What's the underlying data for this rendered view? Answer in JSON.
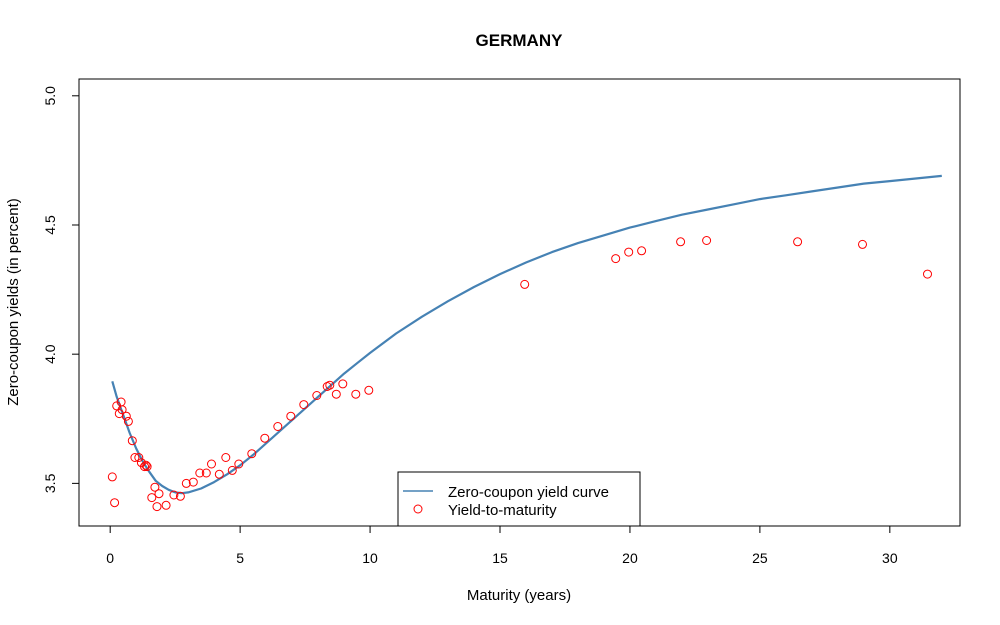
{
  "chart_data": {
    "type": "line",
    "title": "GERMANY",
    "xlabel": "Maturity (years)",
    "ylabel": "Zero-coupon yields (in percent)",
    "xlim": [
      -1.2,
      32.7
    ],
    "ylim": [
      3.335,
      5.065
    ],
    "x_ticks": [
      0,
      5,
      10,
      15,
      20,
      25,
      30
    ],
    "y_ticks": [
      3.5,
      4.0,
      4.5,
      5.0
    ],
    "x_tick_labels": [
      "0",
      "5",
      "10",
      "15",
      "20",
      "25",
      "30"
    ],
    "y_tick_labels": [
      "3.5",
      "4.0",
      "4.5",
      "5.0"
    ],
    "grid": false,
    "legend_position": "bottom-center",
    "series": [
      {
        "name": "Zero-coupon yield curve",
        "kind": "line",
        "color": "#4682B4",
        "x": [
          0.08,
          0.25,
          0.5,
          0.75,
          1.0,
          1.25,
          1.5,
          1.75,
          2.0,
          2.25,
          2.5,
          2.75,
          3.0,
          3.5,
          4.0,
          4.5,
          5.0,
          5.5,
          6.0,
          6.5,
          7.0,
          7.5,
          8.0,
          8.5,
          9.0,
          9.5,
          10.0,
          11.0,
          12.0,
          13.0,
          14.0,
          15.0,
          16.0,
          17.0,
          18.0,
          19.0,
          20.0,
          21.0,
          22.0,
          23.0,
          24.0,
          25.0,
          26.0,
          27.0,
          28.0,
          29.0,
          30.0,
          31.0,
          32.0
        ],
        "y": [
          3.895,
          3.835,
          3.765,
          3.695,
          3.635,
          3.585,
          3.545,
          3.51,
          3.49,
          3.475,
          3.465,
          3.462,
          3.465,
          3.48,
          3.505,
          3.535,
          3.57,
          3.61,
          3.655,
          3.7,
          3.745,
          3.79,
          3.835,
          3.88,
          3.925,
          3.965,
          4.005,
          4.08,
          4.145,
          4.205,
          4.26,
          4.31,
          4.355,
          4.395,
          4.43,
          4.46,
          4.49,
          4.515,
          4.54,
          4.56,
          4.58,
          4.6,
          4.615,
          4.63,
          4.645,
          4.66,
          4.67,
          4.68,
          4.69
        ]
      },
      {
        "name": "Yield-to-maturity",
        "kind": "scatter",
        "color": "#FF0000",
        "x": [
          0.08,
          0.17,
          0.25,
          0.35,
          0.42,
          0.46,
          0.62,
          0.7,
          0.85,
          0.95,
          1.1,
          1.2,
          1.32,
          1.38,
          1.42,
          1.6,
          1.72,
          1.8,
          1.88,
          2.15,
          2.45,
          2.7,
          2.93,
          3.2,
          3.45,
          3.7,
          3.9,
          4.2,
          4.45,
          4.7,
          4.95,
          5.45,
          5.95,
          6.45,
          6.95,
          7.45,
          7.95,
          8.35,
          8.45,
          8.7,
          8.95,
          9.45,
          9.95,
          15.95,
          19.45,
          19.95,
          20.45,
          21.95,
          22.95,
          26.45,
          28.95,
          31.45
        ],
        "y": [
          3.525,
          3.425,
          3.8,
          3.77,
          3.815,
          3.785,
          3.76,
          3.74,
          3.665,
          3.6,
          3.6,
          3.58,
          3.565,
          3.57,
          3.565,
          3.445,
          3.485,
          3.41,
          3.46,
          3.415,
          3.455,
          3.45,
          3.5,
          3.505,
          3.54,
          3.54,
          3.575,
          3.535,
          3.6,
          3.55,
          3.575,
          3.615,
          3.675,
          3.72,
          3.76,
          3.805,
          3.84,
          3.875,
          3.88,
          3.845,
          3.885,
          3.845,
          3.86,
          4.27,
          4.37,
          4.395,
          4.4,
          4.435,
          4.44,
          4.435,
          4.425,
          4.31
        ]
      }
    ]
  }
}
